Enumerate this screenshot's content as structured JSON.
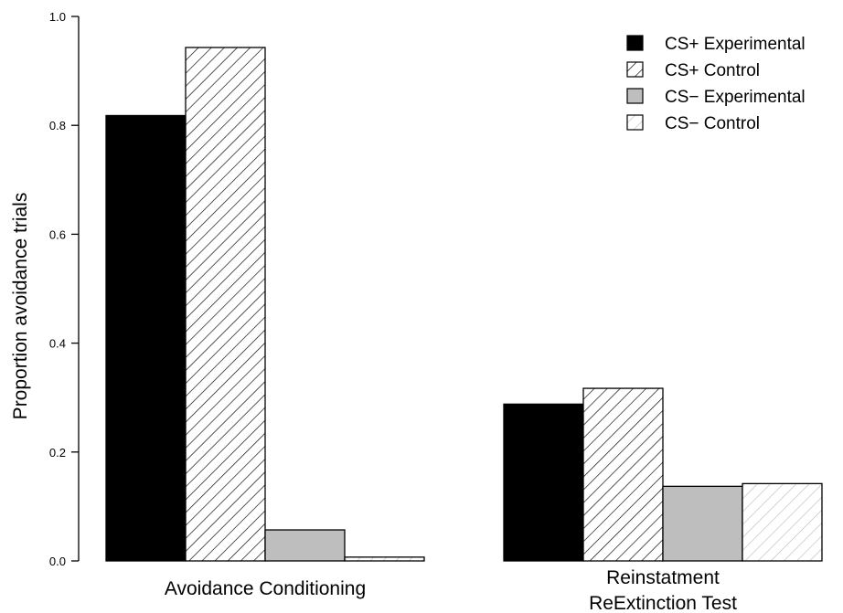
{
  "chart_data": {
    "type": "bar",
    "title": "",
    "xlabel": "",
    "ylabel": "Proportion avoidance trials",
    "ylim": [
      0,
      1
    ],
    "yticks": [
      "0.0",
      "0.2",
      "0.4",
      "0.6",
      "0.8",
      "1.0"
    ],
    "ytick_values": [
      0,
      0.2,
      0.4,
      0.6,
      0.8,
      1.0
    ],
    "grid": false,
    "legend_position": "top-right",
    "categories": [
      {
        "label_lines": [
          "Avoidance Conditioning"
        ]
      },
      {
        "label_lines": [
          "Reinstatment",
          "ReExtinction Test"
        ]
      }
    ],
    "series": [
      {
        "name": "CS+ Experimental",
        "fill": "#000000",
        "hatch": "none",
        "values": [
          0.818,
          0.288
        ]
      },
      {
        "name": "CS+ Control",
        "fill": "#ffffff",
        "hatch": "#000000",
        "values": [
          0.943,
          0.317
        ]
      },
      {
        "name": "CS− Experimental",
        "fill": "#bebebe",
        "hatch": "none",
        "values": [
          0.057,
          0.137
        ]
      },
      {
        "name": "CS− Control",
        "fill": "#ffffff",
        "hatch": "#bebebe",
        "values": [
          0.007,
          0.142
        ]
      }
    ]
  }
}
